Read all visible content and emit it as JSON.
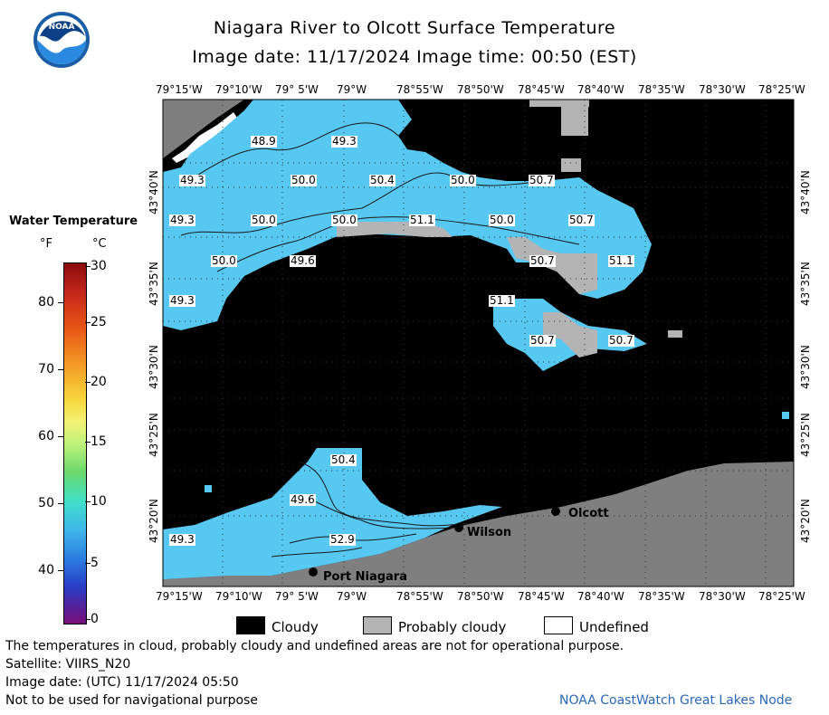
{
  "header": {
    "title": "Niagara River to Olcott Surface Temperature",
    "subtitle": "Image date: 11/17/2024    Image time: 00:50 (EST)",
    "logo_text": "NOAA"
  },
  "map": {
    "lon_labels": [
      "79°15'W",
      "79°10'W",
      "79° 5'W",
      "79°W",
      "78°55'W",
      "78°50'W",
      "78°45'W",
      "78°40'W",
      "78°35'W",
      "78°30'W",
      "78°25'W"
    ],
    "lat_labels": [
      "43°40'N",
      "43°35'N",
      "43°30'N",
      "43°25'N",
      "43°20'N"
    ],
    "temperature_labels": [
      "48.9",
      "49.3",
      "49.3",
      "50.0",
      "50.4",
      "50.0",
      "50.7",
      "49.3",
      "50.0",
      "50.0",
      "51.1",
      "50.0",
      "50.7",
      "50.0",
      "49.6",
      "50.7",
      "51.1",
      "49.3",
      "51.1",
      "50.7",
      "50.7",
      "50.4",
      "49.6",
      "49.3",
      "52.9"
    ],
    "towns": [
      "Olcott",
      "Wilson",
      "Port Niagara"
    ],
    "colors": {
      "cloudy": "#000000",
      "probably_cloudy": "#b4b4b4",
      "undefined": "#ffffff",
      "land": "#7f7f7f",
      "water": "#56c8f2"
    }
  },
  "legend": {
    "title": "Water Temperature",
    "unit_f": "°F",
    "unit_c": "°C",
    "f_ticks": [
      "80",
      "70",
      "60",
      "50",
      "40"
    ],
    "c_ticks": [
      "30",
      "25",
      "20",
      "15",
      "10",
      "5",
      "0"
    ],
    "items": [
      {
        "label": "Cloudy",
        "color": "#000000"
      },
      {
        "label": "Probably cloudy",
        "color": "#b4b4b4"
      },
      {
        "label": "Undefined",
        "color": "#ffffff"
      }
    ]
  },
  "footer": {
    "line1": "The temperatures in cloud, probably cloudy and undefined areas are not for operational purpose.",
    "line2": "Satellite: VIIRS_N20",
    "line3": "Image date: (UTC) 11/17/2024  05:50",
    "line4": "Not to be used for navigational purpose",
    "credit": "NOAA CoastWatch Great Lakes Node"
  }
}
